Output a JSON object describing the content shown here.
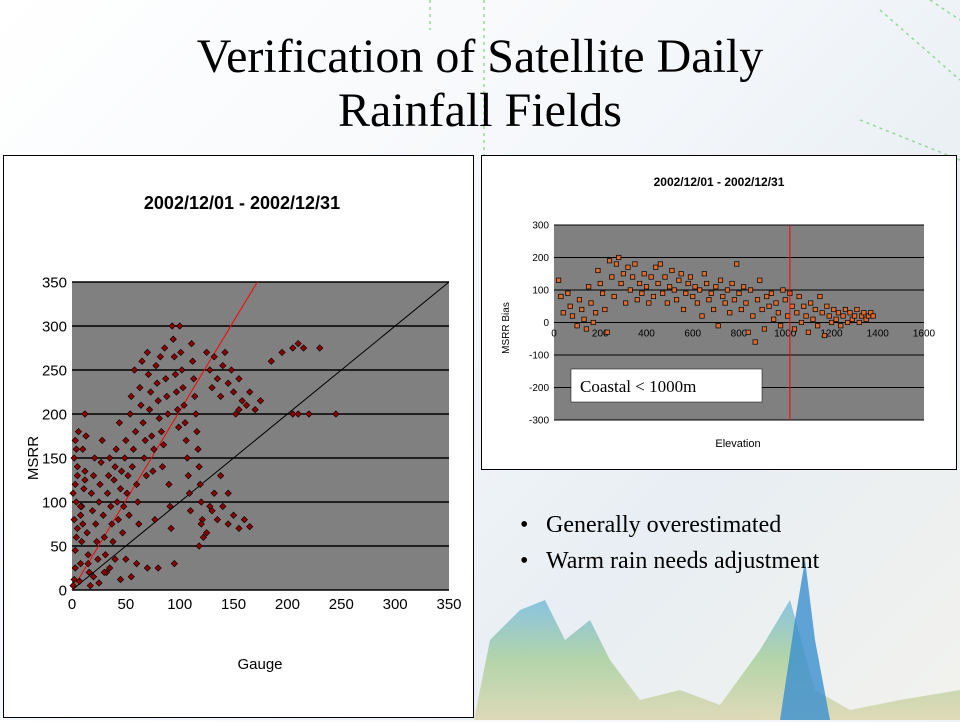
{
  "slide": {
    "title_line1": "Verification of Satellite Daily",
    "title_line2": "Rainfall Fields"
  },
  "bullets": [
    "Generally overestimated",
    "Warm rain needs adjustment"
  ],
  "colors": {
    "plot_bg": "#808080",
    "marker": "#8b0000",
    "marker_edge": "#000000",
    "regression_line": "#ff0000",
    "one_to_one_line": "#000000",
    "threshold_line": "#ff0000",
    "bullet_text": "#000000"
  },
  "chart_data": [
    {
      "type": "scatter",
      "title": "2002/12/01 - 2002/12/31",
      "xlabel": "Gauge",
      "ylabel": "MSRR",
      "xlim": [
        0,
        350
      ],
      "ylim": [
        0,
        350
      ],
      "xticks": [
        "0",
        "50",
        "100",
        "150",
        "200",
        "250",
        "300",
        "350"
      ],
      "yticks": [
        "0",
        "50",
        "100",
        "150",
        "200",
        "250",
        "300",
        "350"
      ],
      "grid": true,
      "marker": "diamond",
      "reference_lines": [
        {
          "name": "1:1",
          "points": [
            [
              0,
              0
            ],
            [
              350,
              350
            ]
          ],
          "color": "#000000"
        },
        {
          "name": "regression",
          "points": [
            [
              0,
              0
            ],
            [
              172,
              350
            ]
          ],
          "color": "#ff0000"
        }
      ],
      "points": [
        [
          1,
          5
        ],
        [
          2,
          12
        ],
        [
          3,
          25
        ],
        [
          3,
          45
        ],
        [
          4,
          60
        ],
        [
          2,
          80
        ],
        [
          4,
          100
        ],
        [
          3,
          120
        ],
        [
          5,
          140
        ],
        [
          4,
          160
        ],
        [
          3,
          170
        ],
        [
          6,
          180
        ],
        [
          2,
          150
        ],
        [
          5,
          130
        ],
        [
          1,
          110
        ],
        [
          7,
          10
        ],
        [
          8,
          30
        ],
        [
          9,
          55
        ],
        [
          10,
          75
        ],
        [
          9,
          95
        ],
        [
          11,
          115
        ],
        [
          12,
          135
        ],
        [
          10,
          160
        ],
        [
          13,
          175
        ],
        [
          12,
          200
        ],
        [
          8,
          85
        ],
        [
          14,
          65
        ],
        [
          15,
          40
        ],
        [
          16,
          20
        ],
        [
          17,
          5
        ],
        [
          18,
          110
        ],
        [
          19,
          90
        ],
        [
          20,
          130
        ],
        [
          21,
          150
        ],
        [
          22,
          75
        ],
        [
          23,
          55
        ],
        [
          24,
          35
        ],
        [
          25,
          100
        ],
        [
          26,
          120
        ],
        [
          27,
          145
        ],
        [
          28,
          170
        ],
        [
          29,
          85
        ],
        [
          30,
          60
        ],
        [
          31,
          40
        ],
        [
          32,
          20
        ],
        [
          33,
          110
        ],
        [
          34,
          130
        ],
        [
          35,
          150
        ],
        [
          36,
          95
        ],
        [
          37,
          75
        ],
        [
          38,
          55
        ],
        [
          39,
          125
        ],
        [
          40,
          140
        ],
        [
          41,
          160
        ],
        [
          42,
          100
        ],
        [
          43,
          80
        ],
        [
          44,
          190
        ],
        [
          45,
          115
        ],
        [
          46,
          135
        ],
        [
          47,
          65
        ],
        [
          48,
          95
        ],
        [
          49,
          150
        ],
        [
          50,
          170
        ],
        [
          51,
          110
        ],
        [
          52,
          130
        ],
        [
          53,
          85
        ],
        [
          54,
          200
        ],
        [
          55,
          220
        ],
        [
          56,
          140
        ],
        [
          57,
          160
        ],
        [
          58,
          250
        ],
        [
          59,
          180
        ],
        [
          60,
          120
        ],
        [
          61,
          100
        ],
        [
          62,
          75
        ],
        [
          63,
          230
        ],
        [
          64,
          210
        ],
        [
          65,
          260
        ],
        [
          66,
          190
        ],
        [
          67,
          150
        ],
        [
          68,
          170
        ],
        [
          69,
          130
        ],
        [
          70,
          270
        ],
        [
          71,
          245
        ],
        [
          72,
          205
        ],
        [
          73,
          225
        ],
        [
          74,
          175
        ],
        [
          75,
          135
        ],
        [
          76,
          160
        ],
        [
          77,
          80
        ],
        [
          78,
          255
        ],
        [
          79,
          235
        ],
        [
          80,
          215
        ],
        [
          81,
          195
        ],
        [
          82,
          265
        ],
        [
          83,
          180
        ],
        [
          84,
          140
        ],
        [
          85,
          165
        ],
        [
          86,
          275
        ],
        [
          87,
          240
        ],
        [
          88,
          220
        ],
        [
          89,
          200
        ],
        [
          90,
          120
        ],
        [
          91,
          95
        ],
        [
          92,
          70
        ],
        [
          93,
          300
        ],
        [
          94,
          285
        ],
        [
          95,
          265
        ],
        [
          96,
          245
        ],
        [
          97,
          225
        ],
        [
          98,
          205
        ],
        [
          99,
          185
        ],
        [
          100,
          300
        ],
        [
          101,
          270
        ],
        [
          102,
          250
        ],
        [
          103,
          230
        ],
        [
          104,
          210
        ],
        [
          105,
          190
        ],
        [
          106,
          170
        ],
        [
          107,
          150
        ],
        [
          108,
          130
        ],
        [
          109,
          110
        ],
        [
          110,
          90
        ],
        [
          111,
          280
        ],
        [
          112,
          260
        ],
        [
          113,
          240
        ],
        [
          114,
          220
        ],
        [
          115,
          200
        ],
        [
          116,
          180
        ],
        [
          117,
          160
        ],
        [
          118,
          140
        ],
        [
          119,
          120
        ],
        [
          120,
          100
        ],
        [
          121,
          80
        ],
        [
          122,
          60
        ],
        [
          125,
          270
        ],
        [
          128,
          250
        ],
        [
          130,
          230
        ],
        [
          132,
          265
        ],
        [
          135,
          240
        ],
        [
          138,
          220
        ],
        [
          140,
          255
        ],
        [
          142,
          270
        ],
        [
          145,
          235
        ],
        [
          148,
          250
        ],
        [
          150,
          225
        ],
        [
          152,
          200
        ],
        [
          155,
          240
        ],
        [
          158,
          215
        ],
        [
          162,
          210
        ],
        [
          130,
          90
        ],
        [
          135,
          80
        ],
        [
          140,
          95
        ],
        [
          145,
          75
        ],
        [
          150,
          85
        ],
        [
          155,
          70
        ],
        [
          160,
          80
        ],
        [
          165,
          72
        ],
        [
          120,
          75
        ],
        [
          125,
          65
        ],
        [
          128,
          95
        ],
        [
          118,
          50
        ],
        [
          132,
          110
        ],
        [
          138,
          130
        ],
        [
          145,
          110
        ],
        [
          165,
          225
        ],
        [
          170,
          205
        ],
        [
          175,
          215
        ],
        [
          185,
          260
        ],
        [
          195,
          270
        ],
        [
          205,
          275
        ],
        [
          210,
          280
        ],
        [
          215,
          275
        ],
        [
          230,
          275
        ],
        [
          205,
          200
        ],
        [
          210,
          200
        ],
        [
          220,
          200
        ],
        [
          245,
          200
        ],
        [
          155,
          205
        ],
        [
          95,
          30
        ],
        [
          70,
          25
        ],
        [
          80,
          25
        ],
        [
          60,
          30
        ],
        [
          50,
          35
        ],
        [
          40,
          35
        ],
        [
          30,
          20
        ],
        [
          20,
          15
        ],
        [
          35,
          25
        ],
        [
          25,
          8
        ],
        [
          45,
          12
        ],
        [
          55,
          15
        ],
        [
          15,
          30
        ],
        [
          5,
          70
        ],
        [
          8,
          95
        ],
        [
          12,
          125
        ]
      ]
    },
    {
      "type": "scatter",
      "title": "2002/12/01 - 2002/12/31",
      "xlabel": "Elevation",
      "ylabel": "MSRR Bias",
      "xlim": [
        0,
        1600
      ],
      "ylim": [
        -300,
        300
      ],
      "xticks": [
        "0",
        "200",
        "400",
        "600",
        "800",
        "1000",
        "1200",
        "1400",
        "1600"
      ],
      "yticks": [
        "-300",
        "-200",
        "-100",
        "0",
        "100",
        "200",
        "300"
      ],
      "grid": true,
      "marker": "square",
      "threshold_line": {
        "x": 1020
      },
      "annotation": "Coastal < 1000m",
      "points": [
        [
          20,
          130
        ],
        [
          30,
          80
        ],
        [
          40,
          30
        ],
        [
          60,
          90
        ],
        [
          70,
          50
        ],
        [
          80,
          20
        ],
        [
          100,
          -10
        ],
        [
          110,
          70
        ],
        [
          120,
          40
        ],
        [
          130,
          10
        ],
        [
          140,
          -20
        ],
        [
          150,
          110
        ],
        [
          160,
          60
        ],
        [
          170,
          0
        ],
        [
          180,
          30
        ],
        [
          190,
          160
        ],
        [
          200,
          120
        ],
        [
          210,
          90
        ],
        [
          220,
          40
        ],
        [
          230,
          -30
        ],
        [
          240,
          190
        ],
        [
          250,
          140
        ],
        [
          260,
          80
        ],
        [
          270,
          180
        ],
        [
          280,
          200
        ],
        [
          290,
          120
        ],
        [
          300,
          150
        ],
        [
          310,
          60
        ],
        [
          320,
          170
        ],
        [
          330,
          100
        ],
        [
          340,
          140
        ],
        [
          350,
          180
        ],
        [
          360,
          70
        ],
        [
          370,
          120
        ],
        [
          380,
          90
        ],
        [
          390,
          150
        ],
        [
          400,
          110
        ],
        [
          410,
          60
        ],
        [
          420,
          140
        ],
        [
          430,
          80
        ],
        [
          440,
          170
        ],
        [
          450,
          120
        ],
        [
          460,
          180
        ],
        [
          470,
          90
        ],
        [
          480,
          140
        ],
        [
          490,
          60
        ],
        [
          500,
          110
        ],
        [
          510,
          160
        ],
        [
          520,
          100
        ],
        [
          530,
          70
        ],
        [
          540,
          130
        ],
        [
          550,
          150
        ],
        [
          560,
          40
        ],
        [
          570,
          90
        ],
        [
          580,
          120
        ],
        [
          590,
          140
        ],
        [
          600,
          80
        ],
        [
          610,
          110
        ],
        [
          620,
          60
        ],
        [
          630,
          100
        ],
        [
          640,
          20
        ],
        [
          650,
          150
        ],
        [
          660,
          120
        ],
        [
          670,
          70
        ],
        [
          680,
          90
        ],
        [
          690,
          40
        ],
        [
          700,
          110
        ],
        [
          710,
          -10
        ],
        [
          720,
          130
        ],
        [
          730,
          80
        ],
        [
          740,
          60
        ],
        [
          750,
          100
        ],
        [
          760,
          30
        ],
        [
          770,
          120
        ],
        [
          780,
          70
        ],
        [
          790,
          180
        ],
        [
          800,
          90
        ],
        [
          810,
          40
        ],
        [
          820,
          110
        ],
        [
          830,
          60
        ],
        [
          840,
          -30
        ],
        [
          850,
          100
        ],
        [
          860,
          20
        ],
        [
          870,
          -60
        ],
        [
          880,
          70
        ],
        [
          890,
          130
        ],
        [
          900,
          40
        ],
        [
          910,
          -20
        ],
        [
          920,
          80
        ],
        [
          930,
          50
        ],
        [
          940,
          90
        ],
        [
          950,
          10
        ],
        [
          960,
          60
        ],
        [
          970,
          30
        ],
        [
          980,
          -10
        ],
        [
          990,
          100
        ],
        [
          1000,
          70
        ],
        [
          1010,
          20
        ],
        [
          1020,
          90
        ],
        [
          1030,
          50
        ],
        [
          1040,
          -20
        ],
        [
          1050,
          30
        ],
        [
          1060,
          80
        ],
        [
          1070,
          0
        ],
        [
          1080,
          50
        ],
        [
          1090,
          20
        ],
        [
          1100,
          -30
        ],
        [
          1110,
          60
        ],
        [
          1120,
          10
        ],
        [
          1130,
          40
        ],
        [
          1140,
          -10
        ],
        [
          1150,
          80
        ],
        [
          1160,
          30
        ],
        [
          1170,
          -40
        ],
        [
          1180,
          50
        ],
        [
          1190,
          20
        ],
        [
          1200,
          0
        ],
        [
          1210,
          40
        ],
        [
          1220,
          10
        ],
        [
          1230,
          30
        ],
        [
          1240,
          -10
        ],
        [
          1250,
          20
        ],
        [
          1260,
          40
        ],
        [
          1270,
          0
        ],
        [
          1280,
          30
        ],
        [
          1290,
          10
        ],
        [
          1300,
          20
        ],
        [
          1310,
          40
        ],
        [
          1320,
          0
        ],
        [
          1330,
          20
        ],
        [
          1340,
          30
        ],
        [
          1350,
          10
        ],
        [
          1360,
          20
        ],
        [
          1370,
          30
        ],
        [
          1380,
          20
        ]
      ]
    }
  ]
}
